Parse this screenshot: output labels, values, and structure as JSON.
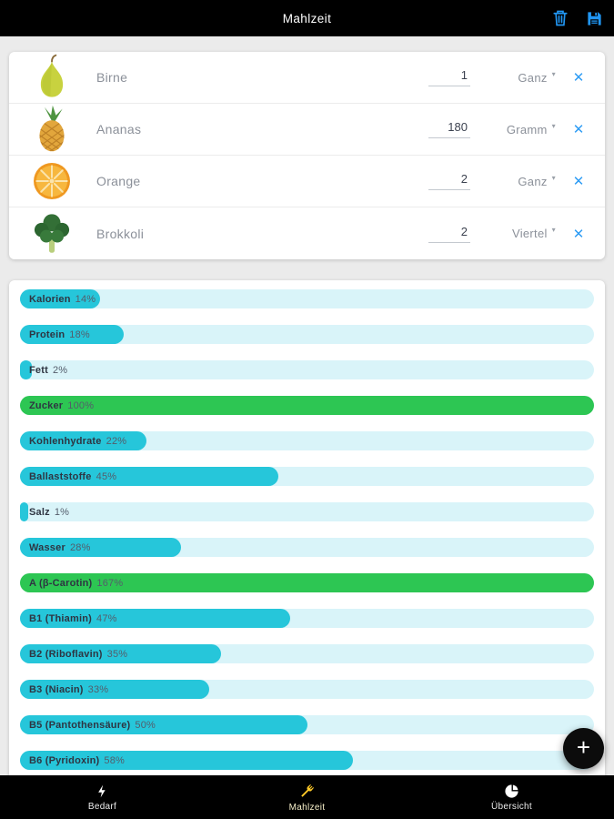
{
  "header": {
    "title": "Mahlzeit"
  },
  "foods": [
    {
      "name": "Birne",
      "amount": "1",
      "unit": "Ganz",
      "image": "pear"
    },
    {
      "name": "Ananas",
      "amount": "180",
      "unit": "Gramm",
      "image": "pineapple"
    },
    {
      "name": "Orange",
      "amount": "2",
      "unit": "Ganz",
      "image": "orange"
    },
    {
      "name": "Brokkoli",
      "amount": "2",
      "unit": "Viertel",
      "image": "broccoli"
    }
  ],
  "nutrients": [
    {
      "label": "Kalorien",
      "percent": 14
    },
    {
      "label": "Protein",
      "percent": 18
    },
    {
      "label": "Fett",
      "percent": 2
    },
    {
      "label": "Zucker",
      "percent": 100
    },
    {
      "label": "Kohlenhydrate",
      "percent": 22
    },
    {
      "label": "Ballaststoffe",
      "percent": 45
    },
    {
      "label": "Salz",
      "percent": 1
    },
    {
      "label": "Wasser",
      "percent": 28
    },
    {
      "label": "A (β-Carotin)",
      "percent": 167
    },
    {
      "label": "B1 (Thiamin)",
      "percent": 47
    },
    {
      "label": "B2 (Riboflavin)",
      "percent": 35
    },
    {
      "label": "B3 (Niacin)",
      "percent": 33
    },
    {
      "label": "B5 (Pantothensäure)",
      "percent": 50
    },
    {
      "label": "B6 (Pyridoxin)",
      "percent": 58
    }
  ],
  "fab": {
    "label": "+"
  },
  "bottom_nav": {
    "items": [
      {
        "label": "Bedarf",
        "icon": "lightning-icon",
        "active": false
      },
      {
        "label": "Mahlzeit",
        "icon": "cutlery-icon",
        "active": true
      },
      {
        "label": "Übersicht",
        "icon": "pie-chart-icon",
        "active": false
      }
    ]
  },
  "colors": {
    "accent_blue": "#2196f3",
    "bar_fill": "#26c6da",
    "bar_track": "#d9f4f9",
    "bar_over_100": "#2dc653",
    "nav_active_label": "#f6efc9"
  }
}
